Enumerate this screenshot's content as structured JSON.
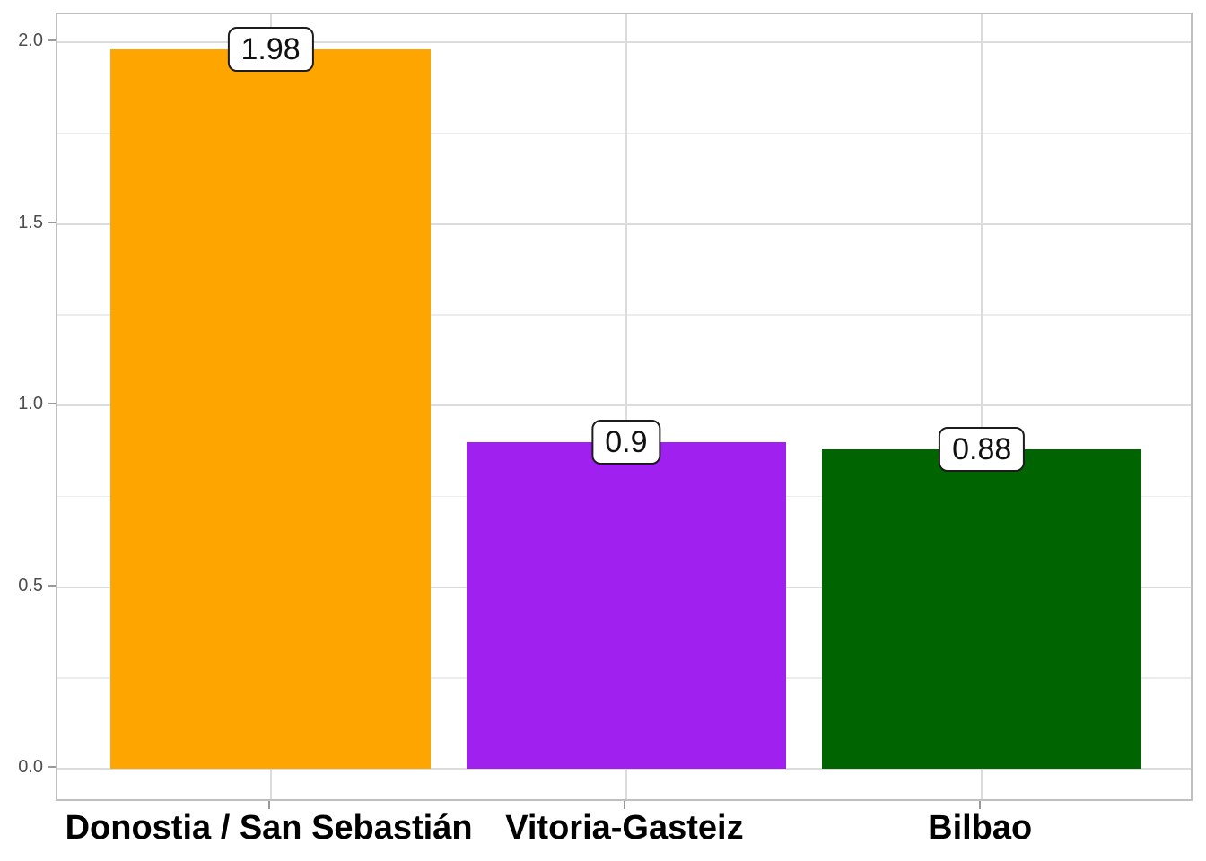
{
  "chart_data": {
    "type": "bar",
    "title": "",
    "xlabel": "",
    "ylabel": "",
    "categories": [
      "Donostia / San Sebastián",
      "Vitoria-Gasteiz",
      "Bilbao"
    ],
    "values": [
      1.98,
      0.9,
      0.88
    ],
    "value_labels": [
      "1.98",
      "0.9",
      "0.88"
    ],
    "bar_colors": [
      "#FFA500",
      "#A020F0",
      "#006400"
    ],
    "y_axis": {
      "ticks": [
        0.0,
        0.5,
        1.0,
        1.5,
        2.0
      ],
      "tick_labels": [
        "0.0",
        "0.5",
        "1.0",
        "1.5",
        "2.0"
      ],
      "minor_ticks": [
        0.25,
        0.75,
        1.25,
        1.75
      ],
      "range": [
        -0.099,
        2.079
      ]
    },
    "grid": "horizontal major+minor, vertical major at category centers",
    "legend": "none",
    "style": {
      "background": "#FFFFFF",
      "panel_border": "#BFBFBF",
      "grid_major": "#DCDCDC",
      "grid_minor": "#ECECEC",
      "tick_color": "#999999",
      "y_label_color": "#4D4D4D",
      "x_label_color": "#000000",
      "value_label_bg": "#FFFFFF",
      "value_label_border": "#1C1C1C",
      "value_label_text": "#111111"
    }
  }
}
